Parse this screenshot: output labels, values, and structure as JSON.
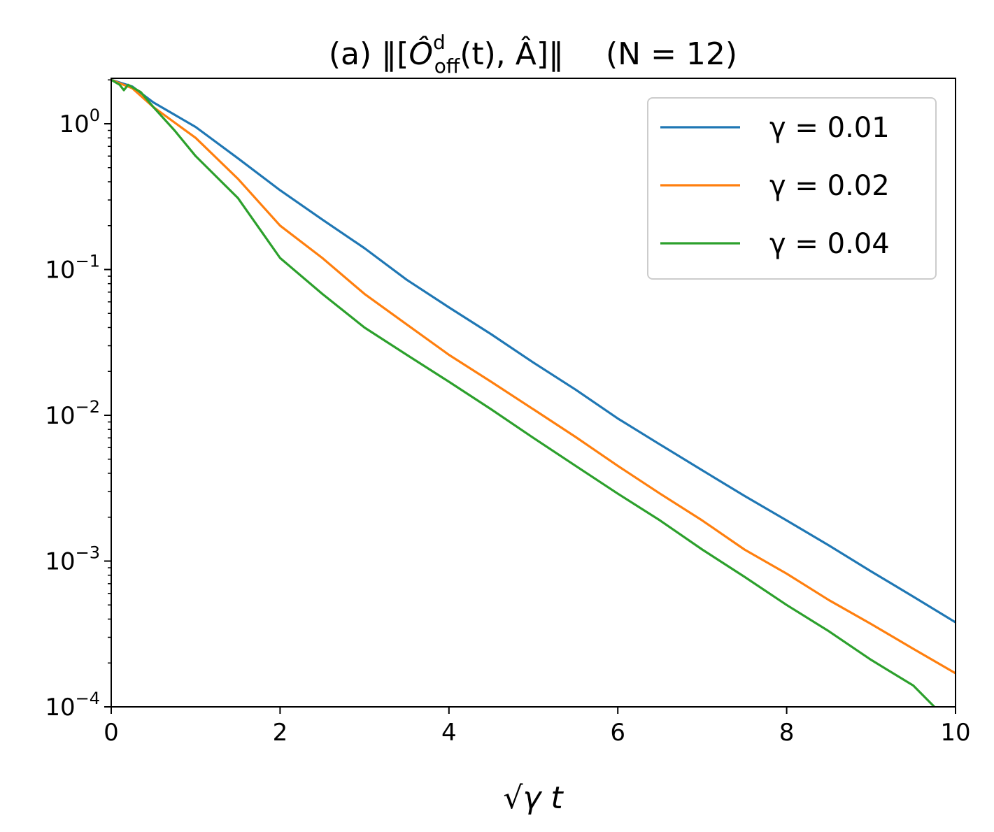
{
  "chart_data": {
    "type": "line",
    "title": {
      "prefix": "(a) ‖[",
      "op": "Ô",
      "sup": "d",
      "sub": "off",
      "mid": "(t), Â]‖",
      "suffix": "(N = 12)"
    },
    "xlabel": "√γ t",
    "ylabel": "",
    "x_scale": "linear",
    "y_scale": "log",
    "xlim": [
      0,
      10
    ],
    "ylim": [
      0.0001,
      2.05
    ],
    "x_ticks": [
      0,
      2,
      4,
      6,
      8,
      10
    ],
    "x_tick_labels": [
      "0",
      "2",
      "4",
      "6",
      "8",
      "10"
    ],
    "y_ticks": [
      {
        "value": 1,
        "base": "10",
        "exp": "0"
      },
      {
        "value": 0.1,
        "base": "10",
        "exp": "−1"
      },
      {
        "value": 0.01,
        "base": "10",
        "exp": "−2"
      },
      {
        "value": 0.001,
        "base": "10",
        "exp": "−3"
      },
      {
        "value": 0.0001,
        "base": "10",
        "exp": "−4"
      }
    ],
    "grid": false,
    "legend_position": "top-right",
    "series": [
      {
        "name": "γ = 0.01",
        "color": "#1f77b4",
        "points": [
          [
            0,
            2.0
          ],
          [
            0.25,
            1.8
          ],
          [
            0.5,
            1.4
          ],
          [
            1,
            0.95
          ],
          [
            1.5,
            0.58
          ],
          [
            2,
            0.35
          ],
          [
            2.5,
            0.22
          ],
          [
            3,
            0.14
          ],
          [
            3.5,
            0.085
          ],
          [
            4,
            0.055
          ],
          [
            4.5,
            0.036
          ],
          [
            5,
            0.023
          ],
          [
            5.5,
            0.015
          ],
          [
            6,
            0.0095
          ],
          [
            6.5,
            0.0063
          ],
          [
            7,
            0.0042
          ],
          [
            7.5,
            0.0028
          ],
          [
            8,
            0.0019
          ],
          [
            8.5,
            0.00128
          ],
          [
            9,
            0.00085
          ],
          [
            9.5,
            0.00057
          ],
          [
            10,
            0.00038
          ]
        ]
      },
      {
        "name": "γ = 0.02",
        "color": "#ff7f0e",
        "points": [
          [
            0,
            2.0
          ],
          [
            0.25,
            1.75
          ],
          [
            0.5,
            1.3
          ],
          [
            1,
            0.8
          ],
          [
            1.5,
            0.42
          ],
          [
            2,
            0.2
          ],
          [
            2.5,
            0.12
          ],
          [
            3,
            0.068
          ],
          [
            3.5,
            0.042
          ],
          [
            4,
            0.026
          ],
          [
            4.5,
            0.017
          ],
          [
            5,
            0.011
          ],
          [
            5.5,
            0.0071
          ],
          [
            6,
            0.0045
          ],
          [
            6.5,
            0.0029
          ],
          [
            7,
            0.0019
          ],
          [
            7.5,
            0.0012
          ],
          [
            8,
            0.00082
          ],
          [
            8.5,
            0.00054
          ],
          [
            9,
            0.00037
          ],
          [
            9.5,
            0.00025
          ],
          [
            10,
            0.00017
          ]
        ]
      },
      {
        "name": "γ = 0.04",
        "color": "#2ca02c",
        "points": [
          [
            0,
            2.0
          ],
          [
            0.1,
            1.85
          ],
          [
            0.15,
            1.7
          ],
          [
            0.2,
            1.85
          ],
          [
            0.35,
            1.65
          ],
          [
            0.5,
            1.3
          ],
          [
            0.75,
            0.9
          ],
          [
            1,
            0.6
          ],
          [
            1.5,
            0.31
          ],
          [
            2,
            0.12
          ],
          [
            2.5,
            0.068
          ],
          [
            3,
            0.04
          ],
          [
            3.5,
            0.026
          ],
          [
            4,
            0.017
          ],
          [
            4.5,
            0.011
          ],
          [
            5,
            0.007
          ],
          [
            5.5,
            0.0045
          ],
          [
            6,
            0.0029
          ],
          [
            6.5,
            0.0019
          ],
          [
            7,
            0.0012
          ],
          [
            7.5,
            0.00078
          ],
          [
            8,
            0.0005
          ],
          [
            8.5,
            0.00033
          ],
          [
            9,
            0.00021
          ],
          [
            9.5,
            0.00014
          ],
          [
            9.75,
            0.0001
          ]
        ]
      }
    ]
  }
}
